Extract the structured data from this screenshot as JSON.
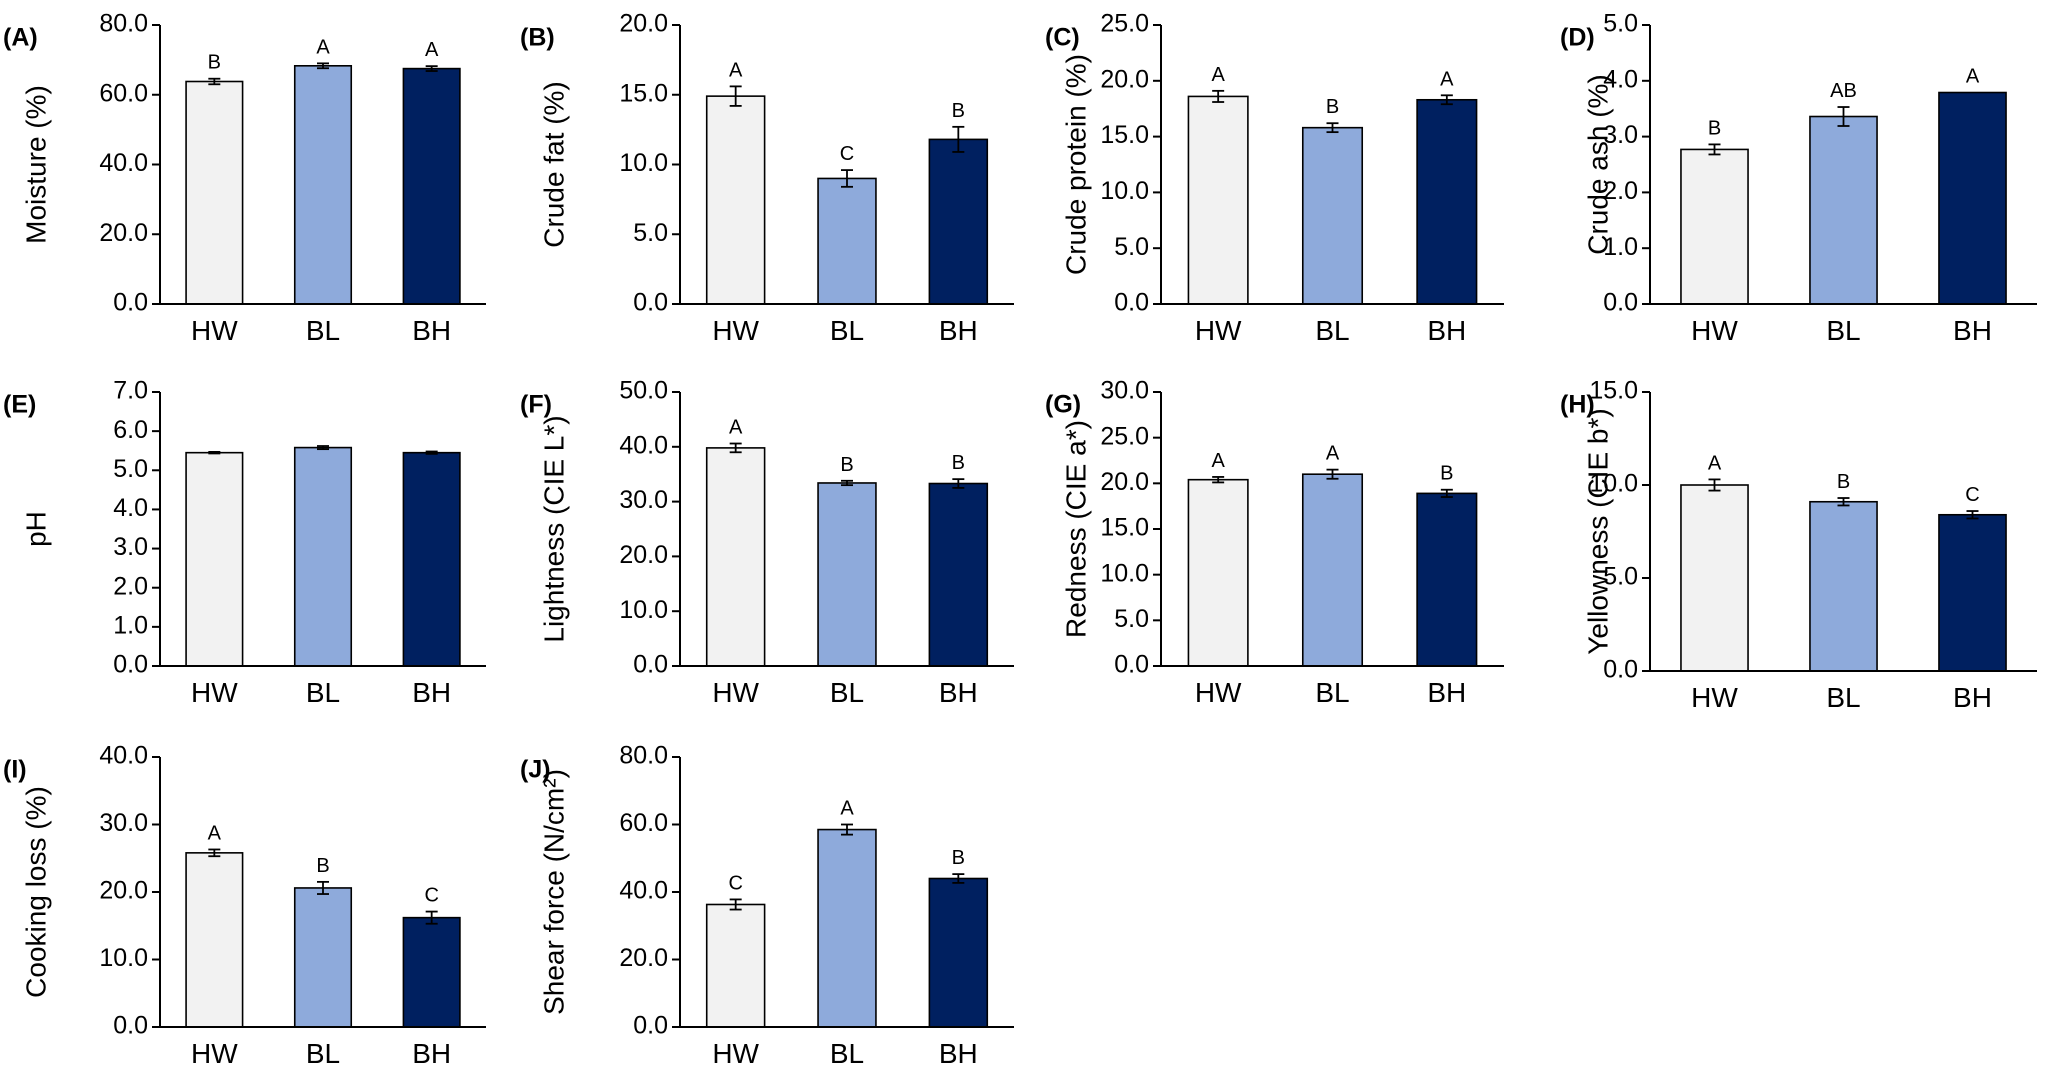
{
  "colors": {
    "HW": "#f2f2f2",
    "BL": "#8eaadb",
    "BH": "#002060"
  },
  "chart_data": [
    {
      "type": "bar",
      "panel": "(A)",
      "ylabel": "Moisture (%)",
      "ylim": [
        0,
        80
      ],
      "yticks": [
        "0.0",
        "20.0",
        "40.0",
        "60.0",
        "80.0"
      ],
      "categories": [
        "HW",
        "BL",
        "BH"
      ],
      "values": [
        63.8,
        68.3,
        67.5
      ],
      "errors": [
        0.8,
        0.7,
        0.7
      ],
      "letters": [
        "B",
        "A",
        "A"
      ],
      "grid": false
    },
    {
      "type": "bar",
      "panel": "(B)",
      "ylabel": "Crude fat (%)",
      "ylim": [
        0,
        20
      ],
      "yticks": [
        "0.0",
        "5.0",
        "10.0",
        "15.0",
        "20.0"
      ],
      "categories": [
        "HW",
        "BL",
        "BH"
      ],
      "values": [
        14.9,
        9.0,
        11.8
      ],
      "errors": [
        0.7,
        0.6,
        0.9
      ],
      "letters": [
        "A",
        "C",
        "B"
      ],
      "grid": false
    },
    {
      "type": "bar",
      "panel": "(C)",
      "ylabel": "Crude protein (%)",
      "ylim": [
        0,
        25
      ],
      "yticks": [
        "0.0",
        "5.0",
        "10.0",
        "15.0",
        "20.0",
        "25.0"
      ],
      "categories": [
        "HW",
        "BL",
        "BH"
      ],
      "values": [
        18.6,
        15.8,
        18.3
      ],
      "errors": [
        0.5,
        0.4,
        0.4
      ],
      "letters": [
        "A",
        "B",
        "A"
      ],
      "grid": false
    },
    {
      "type": "bar",
      "panel": "(D)",
      "ylabel": "Crude ash (%)",
      "ylim": [
        0,
        5
      ],
      "yticks": [
        "0.0",
        "1.0",
        "2.0",
        "3.0",
        "4.0",
        "5.0"
      ],
      "categories": [
        "HW",
        "BL",
        "BH"
      ],
      "values": [
        2.77,
        3.36,
        3.79
      ],
      "errors": [
        0.09,
        0.17,
        0.0
      ],
      "letters": [
        "B",
        "AB",
        "A"
      ],
      "grid": false
    },
    {
      "type": "bar",
      "panel": "(E)",
      "ylabel": "pH",
      "ylim": [
        0,
        7
      ],
      "yticks": [
        "0.0",
        "1.0",
        "2.0",
        "3.0",
        "4.0",
        "5.0",
        "6.0",
        "7.0"
      ],
      "categories": [
        "HW",
        "BL",
        "BH"
      ],
      "values": [
        5.45,
        5.58,
        5.45
      ],
      "errors": [
        0.02,
        0.04,
        0.03
      ],
      "letters": [
        "",
        "",
        ""
      ],
      "grid": false
    },
    {
      "type": "bar",
      "panel": "(F)",
      "ylabel": "Lightness (CIE L*)",
      "ylim": [
        0,
        50
      ],
      "yticks": [
        "0.0",
        "10.0",
        "20.0",
        "30.0",
        "40.0",
        "50.0"
      ],
      "categories": [
        "HW",
        "BL",
        "BH"
      ],
      "values": [
        39.8,
        33.4,
        33.3
      ],
      "errors": [
        0.8,
        0.4,
        0.8
      ],
      "letters": [
        "A",
        "B",
        "B"
      ],
      "grid": false
    },
    {
      "type": "bar",
      "panel": "(G)",
      "ylabel": "Redness (CIE a*)",
      "ylim": [
        0,
        30
      ],
      "yticks": [
        "0.0",
        "5.0",
        "10.0",
        "15.0",
        "20.0",
        "25.0",
        "30.0"
      ],
      "categories": [
        "HW",
        "BL",
        "BH"
      ],
      "values": [
        20.4,
        21.0,
        18.9
      ],
      "errors": [
        0.3,
        0.5,
        0.4
      ],
      "letters": [
        "A",
        "A",
        "B"
      ],
      "grid": false
    },
    {
      "type": "bar",
      "panel": "(H)",
      "ylabel": "Yellowness (CIE b*)",
      "ylim": [
        0,
        15
      ],
      "yticks": [
        "0.0",
        "5.0",
        "10.0",
        "15.0"
      ],
      "categories": [
        "HW",
        "BL",
        "BH"
      ],
      "values": [
        10.0,
        9.1,
        8.4
      ],
      "errors": [
        0.3,
        0.2,
        0.2
      ],
      "letters": [
        "A",
        "B",
        "C"
      ],
      "grid": false
    },
    {
      "type": "bar",
      "panel": "(I)",
      "ylabel": "Cooking loss (%)",
      "ylim": [
        0,
        40
      ],
      "yticks": [
        "0.0",
        "10.0",
        "20.0",
        "30.0",
        "40.0"
      ],
      "categories": [
        "HW",
        "BL",
        "BH"
      ],
      "values": [
        25.8,
        20.6,
        16.2
      ],
      "errors": [
        0.5,
        0.9,
        0.9
      ],
      "letters": [
        "A",
        "B",
        "C"
      ],
      "grid": false
    },
    {
      "type": "bar",
      "panel": "(J)",
      "ylabel": "Shear force (N/cm²)",
      "ylim": [
        0,
        80
      ],
      "yticks": [
        "0.0",
        "20.0",
        "40.0",
        "60.0",
        "80.0"
      ],
      "categories": [
        "HW",
        "BL",
        "BH"
      ],
      "values": [
        36.3,
        58.5,
        44.0
      ],
      "errors": [
        1.5,
        1.5,
        1.3
      ],
      "letters": [
        "C",
        "A",
        "B"
      ],
      "grid": false
    }
  ]
}
